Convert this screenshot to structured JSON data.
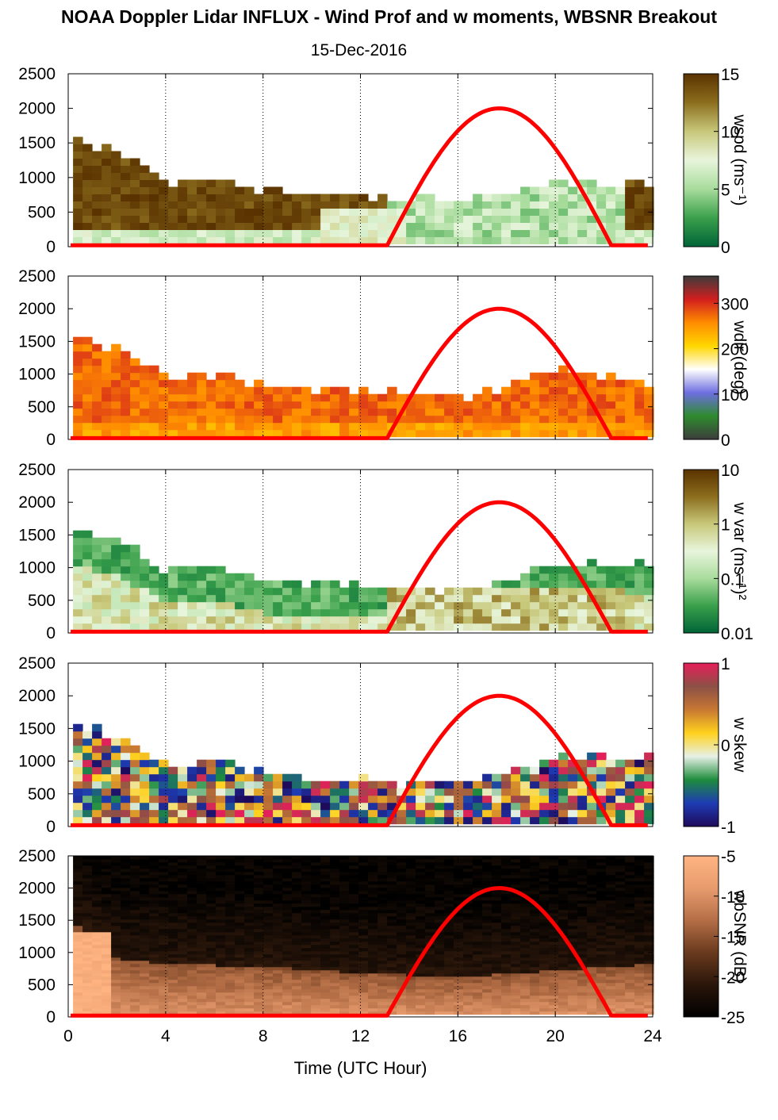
{
  "figure": {
    "title": "NOAA Doppler Lidar INFLUX - Wind Prof and w moments, WBSNR Breakout",
    "date": "15-Dec-2016",
    "x_axis_label": "Time (UTC Hour)",
    "x_ticks": [
      "0",
      "4",
      "8",
      "12",
      "16",
      "20",
      "24"
    ],
    "y_ticks": [
      "0",
      "500",
      "1000",
      "1500",
      "2000",
      "2500"
    ]
  },
  "chart_data": [
    {
      "type": "heatmap",
      "variable": "wspd",
      "colorbar_label": "wspd (ms⁻¹)",
      "colorbar_ticks": [
        "0",
        "5",
        "10",
        "15"
      ],
      "colorbar_range": [
        0,
        15
      ],
      "colormap": [
        "#006437",
        "#3aa04b",
        "#a8dc9c",
        "#e8f5dc",
        "#c8c87a",
        "#8c6e1e",
        "#5a3200"
      ],
      "x_range": [
        0,
        24
      ],
      "y_range": [
        0,
        2500
      ],
      "summary_profile": {
        "hours": [
          0,
          2,
          4,
          6,
          8,
          10,
          12,
          13,
          16,
          20,
          23.8
        ],
        "top_m": [
          1500,
          1300,
          900,
          950,
          750,
          700,
          650,
          650,
          600,
          900,
          800
        ]
      },
      "sun_elevation_curve": {
        "hours": [
          13.1,
          17.6,
          22.3
        ],
        "peak_m": 2000
      }
    },
    {
      "type": "heatmap",
      "variable": "wdir",
      "colorbar_label": "wdir (deg)",
      "colorbar_ticks": [
        "0",
        "100",
        "200",
        "300"
      ],
      "colorbar_range": [
        0,
        360
      ],
      "colormap": [
        "#3c3c3c",
        "#2e8b2e",
        "#6e6ee0",
        "#ffffff",
        "#ffd700",
        "#ff8c00",
        "#d21e1e",
        "#3c3c3c"
      ],
      "x_range": [
        0,
        24
      ],
      "y_range": [
        0,
        2500
      ],
      "summary_profile": {
        "hours": [
          0,
          2,
          4,
          6,
          8,
          10,
          12,
          13,
          16,
          20,
          23.8
        ],
        "top_m": [
          1500,
          1300,
          900,
          950,
          750,
          700,
          650,
          650,
          600,
          1000,
          800
        ]
      },
      "sun_elevation_curve": {
        "hours": [
          13.1,
          17.6,
          22.3
        ],
        "peak_m": 2000
      }
    },
    {
      "type": "heatmap",
      "variable": "w var",
      "colorbar_label": "w var (ms⁻¹)²",
      "colorbar_ticks": [
        "0.01",
        "0.1",
        "1",
        "10"
      ],
      "colorbar_range": [
        0.01,
        10
      ],
      "colorbar_scale": "log",
      "colormap": [
        "#006437",
        "#3aa04b",
        "#a8dc9c",
        "#e8f5dc",
        "#c8c87a",
        "#8c6e1e",
        "#5a3200"
      ],
      "x_range": [
        0,
        24
      ],
      "y_range": [
        0,
        2500
      ],
      "summary_profile": {
        "hours": [
          0,
          2,
          4,
          6,
          8,
          10,
          12,
          13,
          16,
          20,
          23.8
        ],
        "top_m": [
          1500,
          1300,
          900,
          950,
          750,
          700,
          650,
          650,
          600,
          1000,
          1000
        ]
      },
      "sun_elevation_curve": {
        "hours": [
          13.1,
          17.6,
          22.3
        ],
        "peak_m": 2000
      }
    },
    {
      "type": "heatmap",
      "variable": "w skew",
      "colorbar_label": "w skew",
      "colorbar_ticks": [
        "-1",
        "0",
        "1"
      ],
      "colorbar_range": [
        -1,
        1
      ],
      "colormap": [
        "#1e0a5a",
        "#1e3cb4",
        "#1e8c3c",
        "#e6f0e6",
        "#ffd21e",
        "#c87832",
        "#8c5046",
        "#e61e5a"
      ],
      "x_range": [
        0,
        24
      ],
      "y_range": [
        0,
        2500
      ],
      "summary_profile": {
        "hours": [
          0,
          2,
          4,
          6,
          8,
          10,
          12,
          13,
          16,
          20,
          23.8
        ],
        "top_m": [
          1500,
          1300,
          900,
          950,
          750,
          700,
          650,
          650,
          600,
          1000,
          1000
        ]
      },
      "sun_elevation_curve": {
        "hours": [
          13.1,
          17.6,
          22.3
        ],
        "peak_m": 2000
      }
    },
    {
      "type": "heatmap",
      "variable": "wbSNR",
      "colorbar_label": "wbSNR (dB)",
      "colorbar_ticks": [
        "-25",
        "-20",
        "-15",
        "-10",
        "-5"
      ],
      "colorbar_range": [
        -25,
        -5
      ],
      "colormap": [
        "#000000",
        "#2a160a",
        "#6a3a1e",
        "#b46e46",
        "#e89c6e",
        "#ffb482"
      ],
      "x_range": [
        0,
        24
      ],
      "y_range": [
        0,
        2500
      ],
      "summary_profile": {
        "hours": [
          0,
          0.3,
          1.5,
          4,
          8,
          12,
          16,
          20,
          24
        ],
        "boundary_m": [
          1400,
          1400,
          900,
          800,
          750,
          650,
          600,
          700,
          800
        ]
      },
      "sun_elevation_curve": {
        "hours": [
          13.1,
          17.6,
          22.3
        ],
        "peak_m": 2000
      }
    }
  ]
}
